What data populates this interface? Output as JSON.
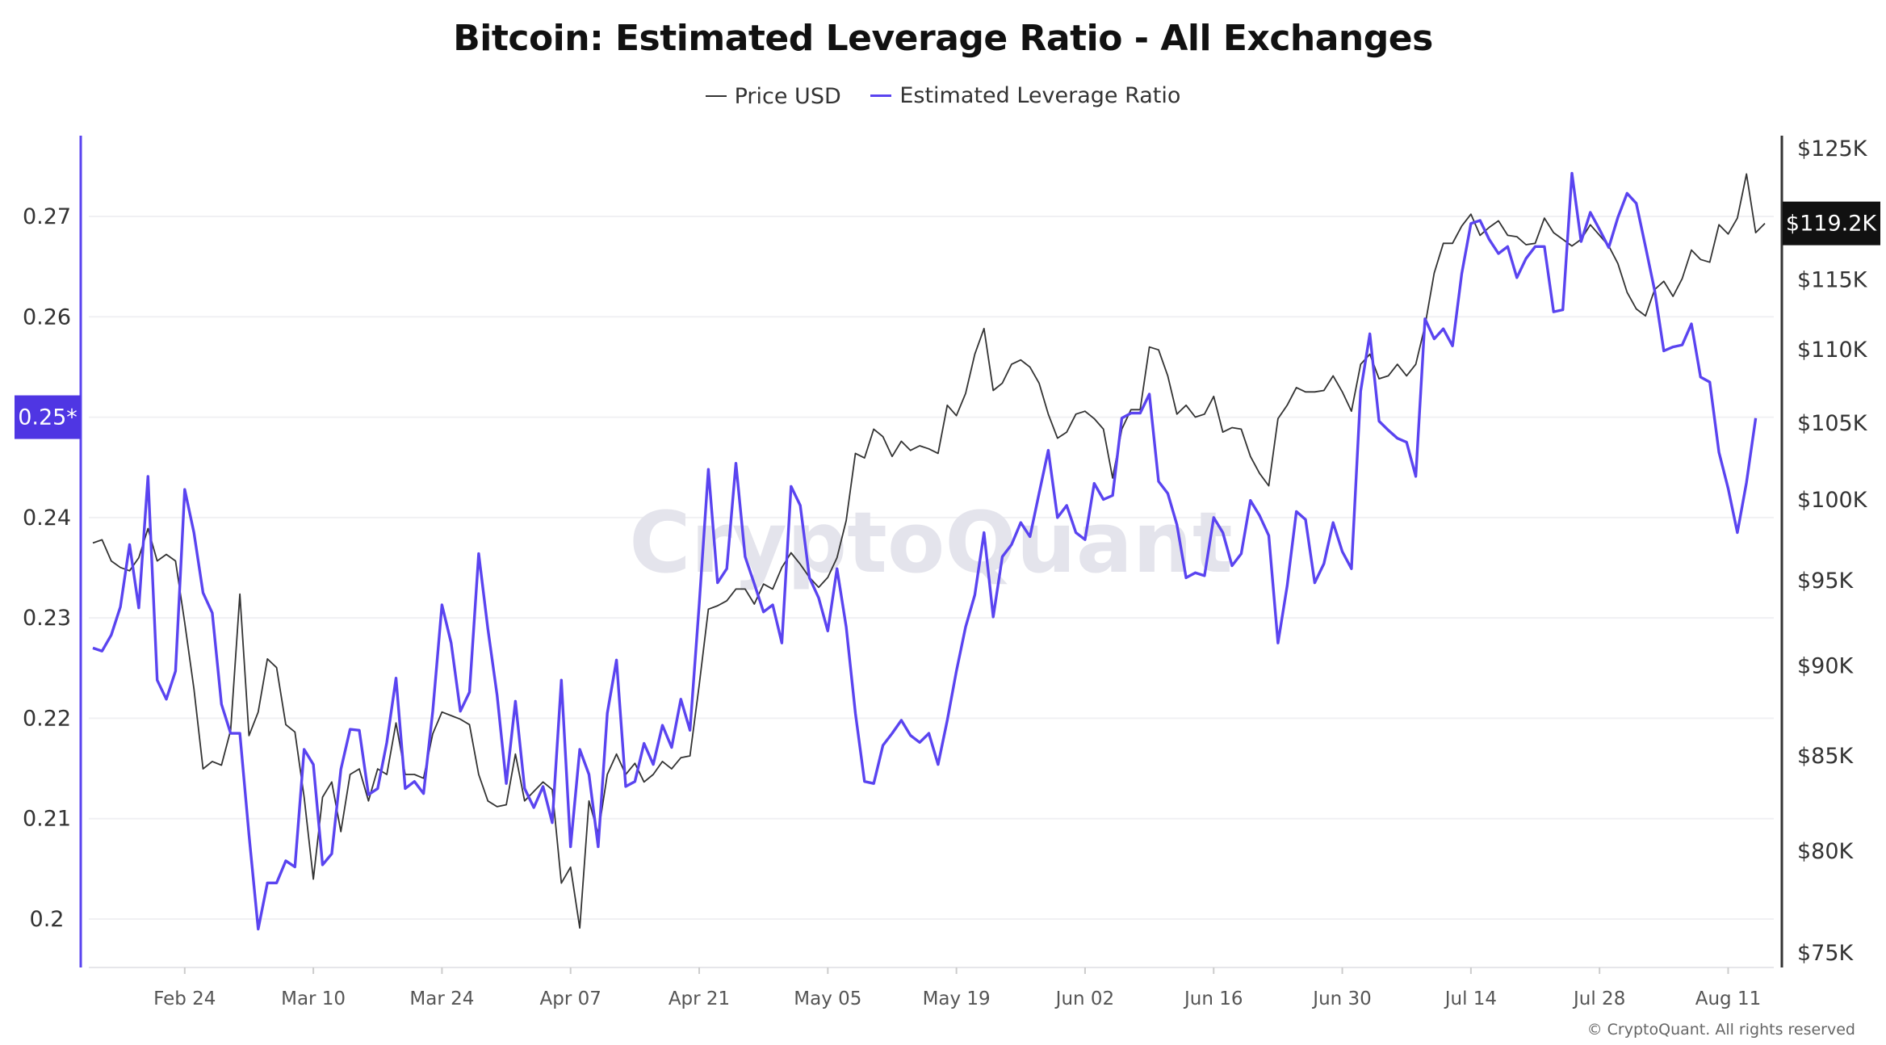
{
  "chart_data": {
    "type": "line",
    "title": "Bitcoin: Estimated Leverage Ratio - All Exchanges",
    "legend": [
      {
        "name": "Price USD",
        "color": "#333333"
      },
      {
        "name": "Estimated Leverage Ratio",
        "color": "#5a44f0"
      }
    ],
    "legend_position": "top-center",
    "grid": true,
    "x": [
      "2025-02-14",
      "2025-02-15",
      "2025-02-16",
      "2025-02-17",
      "2025-02-18",
      "2025-02-19",
      "2025-02-20",
      "2025-02-21",
      "2025-02-22",
      "2025-02-23",
      "2025-02-24",
      "2025-02-25",
      "2025-02-26",
      "2025-02-27",
      "2025-02-28",
      "2025-03-01",
      "2025-03-02",
      "2025-03-03",
      "2025-03-04",
      "2025-03-05",
      "2025-03-06",
      "2025-03-07",
      "2025-03-08",
      "2025-03-09",
      "2025-03-10",
      "2025-03-11",
      "2025-03-12",
      "2025-03-13",
      "2025-03-14",
      "2025-03-15",
      "2025-03-16",
      "2025-03-17",
      "2025-03-18",
      "2025-03-19",
      "2025-03-20",
      "2025-03-21",
      "2025-03-22",
      "2025-03-23",
      "2025-03-24",
      "2025-03-25",
      "2025-03-26",
      "2025-03-27",
      "2025-03-28",
      "2025-03-29",
      "2025-03-30",
      "2025-03-31",
      "2025-04-01",
      "2025-04-02",
      "2025-04-03",
      "2025-04-04",
      "2025-04-05",
      "2025-04-06",
      "2025-04-07",
      "2025-04-08",
      "2025-04-09",
      "2025-04-10",
      "2025-04-11",
      "2025-04-12",
      "2025-04-13",
      "2025-04-14",
      "2025-04-15",
      "2025-04-16",
      "2025-04-17",
      "2025-04-18",
      "2025-04-19",
      "2025-04-20",
      "2025-04-21",
      "2025-04-22",
      "2025-04-23",
      "2025-04-24",
      "2025-04-25",
      "2025-04-26",
      "2025-04-27",
      "2025-04-28",
      "2025-04-29",
      "2025-04-30",
      "2025-05-01",
      "2025-05-02",
      "2025-05-03",
      "2025-05-04",
      "2025-05-05",
      "2025-05-06",
      "2025-05-07",
      "2025-05-08",
      "2025-05-09",
      "2025-05-10",
      "2025-05-11",
      "2025-05-12",
      "2025-05-13",
      "2025-05-14",
      "2025-05-15",
      "2025-05-16",
      "2025-05-17",
      "2025-05-18",
      "2025-05-19",
      "2025-05-20",
      "2025-05-21",
      "2025-05-22",
      "2025-05-23",
      "2025-05-24",
      "2025-05-25",
      "2025-05-26",
      "2025-05-27",
      "2025-05-28",
      "2025-05-29",
      "2025-05-30",
      "2025-05-31",
      "2025-06-01",
      "2025-06-02",
      "2025-06-03",
      "2025-06-04",
      "2025-06-05",
      "2025-06-06",
      "2025-06-07",
      "2025-06-08",
      "2025-06-09",
      "2025-06-10",
      "2025-06-11",
      "2025-06-12",
      "2025-06-13",
      "2025-06-14",
      "2025-06-15",
      "2025-06-16",
      "2025-06-17",
      "2025-06-18",
      "2025-06-19",
      "2025-06-20",
      "2025-06-21",
      "2025-06-22",
      "2025-06-23",
      "2025-06-24",
      "2025-06-25",
      "2025-06-26",
      "2025-06-27",
      "2025-06-28",
      "2025-06-29",
      "2025-06-30",
      "2025-07-01",
      "2025-07-02",
      "2025-07-03",
      "2025-07-04",
      "2025-07-05",
      "2025-07-06",
      "2025-07-07",
      "2025-07-08",
      "2025-07-09",
      "2025-07-10",
      "2025-07-11",
      "2025-07-12",
      "2025-07-13",
      "2025-07-14",
      "2025-07-15",
      "2025-07-16",
      "2025-07-17",
      "2025-07-18",
      "2025-07-19",
      "2025-07-20",
      "2025-07-21",
      "2025-07-22",
      "2025-07-23",
      "2025-07-24",
      "2025-07-25",
      "2025-07-26",
      "2025-07-27",
      "2025-07-28",
      "2025-07-29",
      "2025-07-30",
      "2025-07-31",
      "2025-08-01",
      "2025-08-02",
      "2025-08-03",
      "2025-08-04",
      "2025-08-05",
      "2025-08-06",
      "2025-08-07",
      "2025-08-08",
      "2025-08-09",
      "2025-08-10",
      "2025-08-11",
      "2025-08-12",
      "2025-08-13",
      "2025-08-14",
      "2025-08-15"
    ],
    "x_ticks": [
      {
        "date": "2025-02-24",
        "label": "Feb 24"
      },
      {
        "date": "2025-03-10",
        "label": "Mar 10"
      },
      {
        "date": "2025-03-24",
        "label": "Mar 24"
      },
      {
        "date": "2025-04-07",
        "label": "Apr 07"
      },
      {
        "date": "2025-04-21",
        "label": "Apr 21"
      },
      {
        "date": "2025-05-05",
        "label": "May 05"
      },
      {
        "date": "2025-05-19",
        "label": "May 19"
      },
      {
        "date": "2025-06-02",
        "label": "Jun 02"
      },
      {
        "date": "2025-06-16",
        "label": "Jun 16"
      },
      {
        "date": "2025-06-30",
        "label": "Jun 30"
      },
      {
        "date": "2025-07-14",
        "label": "Jul 14"
      },
      {
        "date": "2025-07-28",
        "label": "Jul 28"
      },
      {
        "date": "2025-08-11",
        "label": "Aug 11"
      }
    ],
    "y_left": {
      "ticks": [
        0.2,
        0.21,
        0.22,
        0.23,
        0.24,
        0.26,
        0.27
      ],
      "tick_labels": [
        "0.2",
        "0.21",
        "0.22",
        "0.23",
        "0.24",
        "0.26",
        "0.27"
      ],
      "range": [
        0.195,
        0.279
      ],
      "scale": "linear"
    },
    "y_right": {
      "ticks": [
        75000,
        80000,
        85000,
        90000,
        95000,
        100000,
        105000,
        110000,
        115000,
        125000
      ],
      "tick_labels": [
        "$75K",
        "$80K",
        "$85K",
        "$90K",
        "$95K",
        "$100K",
        "$105K",
        "$110K",
        "$115K",
        "$125K"
      ],
      "range": [
        74000,
        130000
      ],
      "scale": "log"
    },
    "current_markers": {
      "left_label": "0.25*",
      "left_value": 0.25,
      "left_color": "#4f36e3",
      "right_label": "$119.2K",
      "right_value": 119200,
      "right_color": "#111111"
    },
    "series": [
      {
        "name": "Price USD",
        "axis": "right",
        "color": "#333333",
        "values": [
          97300,
          97500,
          96200,
          95800,
          95600,
          96400,
          98200,
          96200,
          96600,
          96200,
          92500,
          88700,
          84300,
          84700,
          84500,
          86400,
          94200,
          86100,
          87400,
          90400,
          89900,
          86700,
          86300,
          82800,
          78600,
          82800,
          83600,
          81000,
          84000,
          84300,
          82600,
          84300,
          84000,
          86800,
          84000,
          84000,
          83800,
          86200,
          87400,
          87200,
          87000,
          86700,
          84000,
          82600,
          82300,
          82400,
          85100,
          82600,
          83100,
          83600,
          83200,
          78400,
          79200,
          76200,
          82600,
          80900,
          84000,
          85100,
          84000,
          84600,
          83600,
          84000,
          84700,
          84300,
          84900,
          85000,
          88900,
          93300,
          93500,
          93800,
          94500,
          94500,
          93600,
          94800,
          94500,
          95800,
          96700,
          96000,
          95200,
          94600,
          95200,
          96400,
          98700,
          103000,
          102700,
          104600,
          104100,
          102800,
          103800,
          103200,
          103500,
          103300,
          103000,
          106200,
          105500,
          107000,
          109700,
          111500,
          107200,
          107700,
          109000,
          109300,
          108800,
          107700,
          105600,
          104000,
          104400,
          105600,
          105800,
          105300,
          104600,
          101400,
          104600,
          105900,
          105900,
          110200,
          110000,
          108200,
          105600,
          106200,
          105400,
          105600,
          106800,
          104400,
          104700,
          104600,
          102800,
          101700,
          100900,
          105300,
          106200,
          107400,
          107100,
          107100,
          107200,
          108200,
          107100,
          105800,
          109000,
          109700,
          108000,
          108200,
          109000,
          108200,
          109000,
          111700,
          115500,
          117700,
          117700,
          119000,
          119900,
          118300,
          118900,
          119400,
          118300,
          118200,
          117600,
          117700,
          119600,
          118500,
          118000,
          117500,
          118000,
          119100,
          118300,
          117500,
          116200,
          114100,
          112900,
          112400,
          114300,
          114900,
          113800,
          115100,
          117200,
          116500,
          116300,
          119100,
          118400,
          119600,
          123000,
          118500,
          119200
        ]
      },
      {
        "name": "Estimated Leverage Ratio",
        "axis": "left",
        "color": "#5a44f0",
        "values": [
          0.227,
          0.2267,
          0.2283,
          0.2311,
          0.2373,
          0.231,
          0.2441,
          0.2238,
          0.2219,
          0.2247,
          0.2428,
          0.2385,
          0.2325,
          0.2305,
          0.2214,
          0.2185,
          0.2185,
          0.2084,
          0.199,
          0.2036,
          0.2036,
          0.2058,
          0.2052,
          0.2169,
          0.2154,
          0.2054,
          0.2065,
          0.2149,
          0.2189,
          0.2188,
          0.2124,
          0.213,
          0.2176,
          0.224,
          0.213,
          0.2137,
          0.2125,
          0.2207,
          0.2313,
          0.2275,
          0.2207,
          0.2226,
          0.2364,
          0.2289,
          0.2223,
          0.2135,
          0.2217,
          0.213,
          0.2111,
          0.2132,
          0.2096,
          0.2238,
          0.2072,
          0.2169,
          0.2144,
          0.2072,
          0.2205,
          0.2258,
          0.2132,
          0.2137,
          0.2175,
          0.2154,
          0.2193,
          0.2171,
          0.2219,
          0.2188,
          0.2313,
          0.2448,
          0.2335,
          0.2349,
          0.2454,
          0.2361,
          0.2334,
          0.2306,
          0.2313,
          0.2275,
          0.2431,
          0.2412,
          0.234,
          0.232,
          0.2287,
          0.2349,
          0.2291,
          0.2205,
          0.2137,
          0.2135,
          0.2173,
          0.2185,
          0.2198,
          0.2183,
          0.2176,
          0.2185,
          0.2154,
          0.2198,
          0.2247,
          0.2291,
          0.2323,
          0.2385,
          0.2301,
          0.2361,
          0.2373,
          0.2395,
          0.2381,
          0.2424,
          0.2467,
          0.24,
          0.2412,
          0.2385,
          0.2378,
          0.2434,
          0.2418,
          0.2422,
          0.2499,
          0.2504,
          0.2504,
          0.2523,
          0.2436,
          0.2424,
          0.2393,
          0.234,
          0.2345,
          0.2342,
          0.24,
          0.2385,
          0.2352,
          0.2364,
          0.2417,
          0.2402,
          0.2382,
          0.2275,
          0.2332,
          0.2406,
          0.2398,
          0.2335,
          0.2354,
          0.2395,
          0.2366,
          0.2349,
          0.2526,
          0.2583,
          0.2496,
          0.2487,
          0.2479,
          0.2475,
          0.2441,
          0.2598,
          0.2578,
          0.2588,
          0.2571,
          0.2643,
          0.2693,
          0.2696,
          0.2677,
          0.2663,
          0.267,
          0.2639,
          0.2658,
          0.267,
          0.267,
          0.2605,
          0.2607,
          0.2743,
          0.2675,
          0.2704,
          0.2687,
          0.2669,
          0.2699,
          0.2723,
          0.2713,
          0.267,
          0.2626,
          0.2566,
          0.257,
          0.2572,
          0.2593,
          0.254,
          0.2535,
          0.2465,
          0.2429,
          0.2385,
          0.2435,
          0.2499,
          null
        ]
      }
    ]
  },
  "watermark": "CryptoQuant",
  "footer": {
    "copyright": "© CryptoQuant. All rights reserved"
  }
}
